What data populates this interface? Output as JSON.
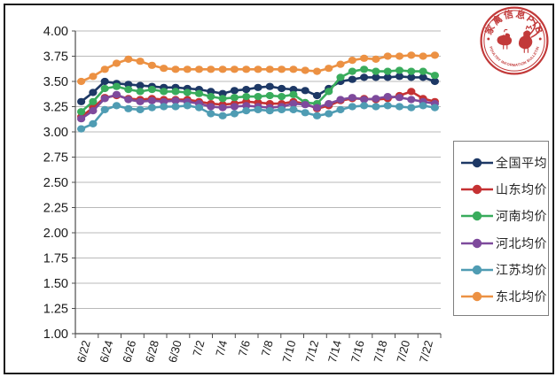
{
  "chart_data": {
    "type": "line",
    "title": "",
    "xlabel": "",
    "ylabel": "",
    "ylim": [
      1.0,
      4.0
    ],
    "y_tick_step": 0.25,
    "y_tick_labels": [
      "4.00",
      "3.75",
      "3.50",
      "3.25",
      "3.00",
      "2.75",
      "2.50",
      "2.25",
      "2.00",
      "1.75",
      "1.50",
      "1.25",
      "1.00"
    ],
    "x": [
      "6/22",
      "6/23",
      "6/24",
      "6/25",
      "6/26",
      "6/27",
      "6/28",
      "6/29",
      "6/30",
      "7/1",
      "7/2",
      "7/3",
      "7/4",
      "7/5",
      "7/6",
      "7/7",
      "7/8",
      "7/9",
      "7/10",
      "7/11",
      "7/12",
      "7/13",
      "7/14",
      "7/15",
      "7/16",
      "7/17",
      "7/18",
      "7/19",
      "7/20",
      "7/21",
      "7/22"
    ],
    "x_tick_labels": [
      "6/22",
      "6/24",
      "6/26",
      "6/28",
      "6/30",
      "7/2",
      "7/4",
      "7/6",
      "7/8",
      "7/10",
      "7/12",
      "7/14",
      "7/16",
      "7/18",
      "7/20",
      "7/22"
    ],
    "grid": "horizontal",
    "legend_position": "right",
    "colors": {
      "grid": "#b9b9b9",
      "axis": "#4d4d4d"
    },
    "series": [
      {
        "name": "全国平均",
        "color": "#1d3865",
        "values": [
          3.3,
          3.39,
          3.5,
          3.48,
          3.47,
          3.46,
          3.45,
          3.44,
          3.44,
          3.43,
          3.42,
          3.4,
          3.38,
          3.41,
          3.42,
          3.44,
          3.45,
          3.43,
          3.42,
          3.41,
          3.36,
          3.43,
          3.5,
          3.52,
          3.54,
          3.54,
          3.54,
          3.55,
          3.54,
          3.54,
          3.5
        ]
      },
      {
        "name": "山东均价",
        "color": "#c53133",
        "values": [
          3.15,
          3.24,
          3.34,
          3.36,
          3.33,
          3.32,
          3.33,
          3.32,
          3.32,
          3.32,
          3.3,
          3.28,
          3.27,
          3.28,
          3.3,
          3.29,
          3.28,
          3.28,
          3.3,
          3.28,
          3.23,
          3.26,
          3.31,
          3.33,
          3.33,
          3.32,
          3.33,
          3.36,
          3.4,
          3.33,
          3.3
        ]
      },
      {
        "name": "河南均价",
        "color": "#39ac5c",
        "values": [
          3.2,
          3.3,
          3.43,
          3.45,
          3.42,
          3.4,
          3.42,
          3.4,
          3.4,
          3.39,
          3.38,
          3.35,
          3.33,
          3.34,
          3.35,
          3.35,
          3.36,
          3.35,
          3.37,
          3.29,
          3.28,
          3.4,
          3.54,
          3.6,
          3.62,
          3.6,
          3.6,
          3.61,
          3.6,
          3.6,
          3.56
        ]
      },
      {
        "name": "河北均价",
        "color": "#7e4a9c",
        "values": [
          3.13,
          3.21,
          3.33,
          3.37,
          3.32,
          3.3,
          3.31,
          3.3,
          3.31,
          3.3,
          3.28,
          3.25,
          3.24,
          3.25,
          3.26,
          3.25,
          3.24,
          3.25,
          3.28,
          3.27,
          3.24,
          3.28,
          3.32,
          3.34,
          3.32,
          3.33,
          3.35,
          3.34,
          3.32,
          3.3,
          3.28
        ]
      },
      {
        "name": "江苏均价",
        "color": "#4f9cb3",
        "values": [
          3.03,
          3.08,
          3.22,
          3.26,
          3.23,
          3.22,
          3.24,
          3.25,
          3.25,
          3.26,
          3.24,
          3.18,
          3.16,
          3.18,
          3.21,
          3.22,
          3.21,
          3.22,
          3.22,
          3.19,
          3.16,
          3.18,
          3.22,
          3.25,
          3.26,
          3.25,
          3.26,
          3.25,
          3.24,
          3.26,
          3.24
        ]
      },
      {
        "name": "东北均价",
        "color": "#ec9143",
        "values": [
          3.5,
          3.55,
          3.62,
          3.68,
          3.72,
          3.7,
          3.66,
          3.63,
          3.62,
          3.62,
          3.62,
          3.62,
          3.62,
          3.62,
          3.62,
          3.62,
          3.62,
          3.62,
          3.62,
          3.61,
          3.6,
          3.63,
          3.67,
          3.71,
          3.73,
          3.72,
          3.75,
          3.75,
          3.76,
          3.75,
          3.76
        ]
      }
    ]
  },
  "logo": {
    "top_text": "家禽信息PIB",
    "bottom_text": "POULTRY INFORMATION BULLETIN",
    "color": "#c23a3a"
  }
}
